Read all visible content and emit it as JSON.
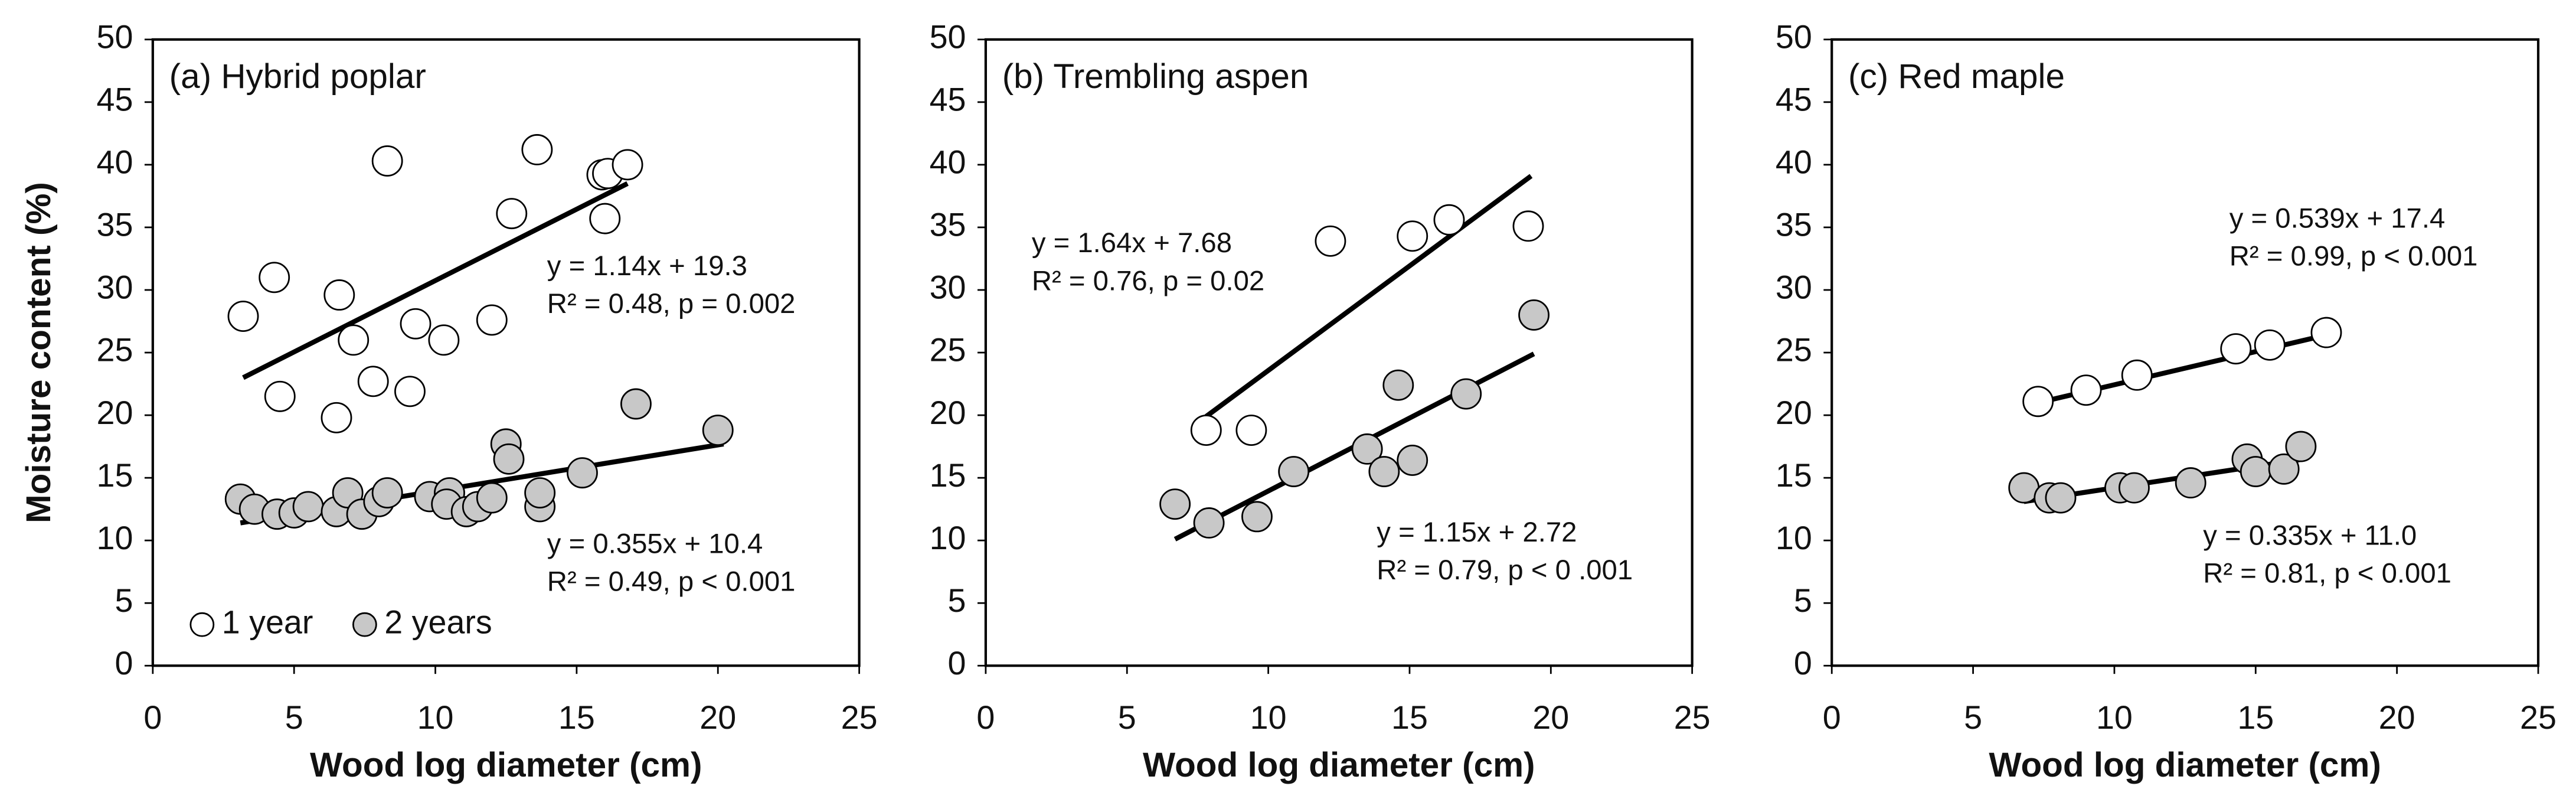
{
  "chart_data": [
    {
      "type": "scatter",
      "title": "(a) Hybrid poplar",
      "xlabel": "Wood log diameter (cm)",
      "ylabel": "Moisture content (%)",
      "xlim": [
        0,
        25
      ],
      "ylim": [
        0,
        50
      ],
      "xticks": [
        0,
        5,
        10,
        15,
        20,
        25
      ],
      "yticks": [
        0,
        5,
        10,
        15,
        20,
        25,
        30,
        35,
        40,
        45,
        50
      ],
      "legend": "lower left",
      "series": [
        {
          "name": "1 year",
          "color": "#ffffff",
          "x": [
            3.2,
            4.3,
            4.5,
            6.6,
            6.5,
            7.1,
            7.8,
            8.3,
            9.3,
            9.1,
            10.3,
            12.0,
            12.7,
            13.6,
            15.9,
            16.0,
            16.1,
            16.8
          ],
          "values": [
            27.9,
            31.0,
            21.5,
            29.6,
            19.8,
            26.0,
            22.7,
            40.3,
            27.3,
            21.9,
            26.0,
            27.6,
            36.1,
            41.2,
            39.2,
            35.7,
            39.3,
            40.0
          ]
        },
        {
          "name": "2 years",
          "color": "#c8c8c8",
          "x": [
            3.1,
            3.6,
            4.4,
            5.0,
            5.5,
            6.5,
            6.9,
            7.4,
            8.0,
            8.3,
            9.8,
            10.5,
            10.4,
            11.1,
            11.5,
            12.0,
            12.5,
            12.6,
            13.7,
            13.7,
            15.2,
            17.1,
            20.0
          ],
          "values": [
            13.3,
            12.5,
            12.1,
            12.2,
            12.7,
            12.3,
            13.8,
            12.1,
            13.1,
            13.8,
            13.5,
            13.8,
            12.9,
            12.3,
            12.7,
            13.4,
            17.7,
            16.5,
            12.7,
            13.8,
            15.4,
            20.9,
            18.8
          ]
        }
      ],
      "lines": [
        {
          "x": [
            3.2,
            16.8
          ],
          "values": [
            23.0,
            38.5
          ]
        },
        {
          "x": [
            3.1,
            20.2
          ],
          "values": [
            11.4,
            17.7
          ]
        }
      ],
      "annotations": [
        "y = 1.14x + 19.3",
        "R² = 0.48, p = 0.002",
        "y = 0.355x + 10.4",
        "R² = 0.49, p < 0.001"
      ]
    },
    {
      "type": "scatter",
      "title": "(b) Trembling aspen",
      "xlabel": "Wood log diameter (cm)",
      "xlim": [
        0,
        25
      ],
      "ylim": [
        0,
        50
      ],
      "xticks": [
        0,
        5,
        10,
        15,
        20,
        25
      ],
      "yticks": [
        0,
        5,
        10,
        15,
        20,
        25,
        30,
        35,
        40,
        45,
        50
      ],
      "series": [
        {
          "color": "#ffffff",
          "x": [
            7.8,
            9.4,
            12.2,
            15.1,
            16.4,
            19.2
          ],
          "values": [
            18.8,
            18.8,
            33.9,
            34.3,
            35.6,
            35.1
          ]
        },
        {
          "color": "#c8c8c8",
          "x": [
            6.7,
            7.9,
            9.6,
            10.9,
            13.5,
            14.1,
            14.6,
            15.1,
            17.0,
            19.4
          ],
          "values": [
            12.9,
            11.4,
            11.9,
            15.5,
            17.3,
            15.5,
            22.4,
            16.4,
            21.7,
            28.0
          ]
        }
      ],
      "lines": [
        {
          "x": [
            7.8,
            19.3
          ],
          "values": [
            19.9,
            39.1
          ]
        },
        {
          "x": [
            6.7,
            19.4
          ],
          "values": [
            10.1,
            24.9
          ]
        }
      ],
      "annotations": [
        "y = 1.64x + 7.68",
        "R² = 0.76, p = 0.02",
        "y = 1.15x + 2.72",
        "R² = 0.79, p < 0 .001"
      ]
    },
    {
      "type": "scatter",
      "title": "(c) Red maple",
      "xlabel": "Wood log diameter (cm)",
      "xlim": [
        0,
        25
      ],
      "ylim": [
        0,
        50
      ],
      "xticks": [
        0,
        5,
        10,
        15,
        20,
        25
      ],
      "yticks": [
        0,
        5,
        10,
        15,
        20,
        25,
        30,
        35,
        40,
        45,
        50
      ],
      "series": [
        {
          "color": "#ffffff",
          "x": [
            7.3,
            9.0,
            10.8,
            14.3,
            15.5,
            17.5
          ],
          "values": [
            21.1,
            22.0,
            23.2,
            25.3,
            25.6,
            26.6
          ]
        },
        {
          "color": "#c8c8c8",
          "x": [
            6.8,
            7.7,
            8.1,
            10.2,
            10.7,
            12.7,
            14.7,
            15.0,
            16.0,
            16.6
          ],
          "values": [
            14.2,
            13.4,
            13.4,
            14.2,
            14.2,
            14.6,
            16.5,
            15.5,
            15.7,
            17.5
          ]
        }
      ],
      "lines": [
        {
          "x": [
            7.3,
            17.5
          ],
          "values": [
            21.0,
            26.4
          ]
        },
        {
          "x": [
            6.8,
            16.7
          ],
          "values": [
            13.1,
            16.5
          ]
        }
      ],
      "annotations": [
        "y = 0.539x + 17.4",
        "R² = 0.99, p < 0.001",
        "y = 0.335x + 11.0",
        "R² = 0.81, p < 0.001"
      ]
    }
  ]
}
